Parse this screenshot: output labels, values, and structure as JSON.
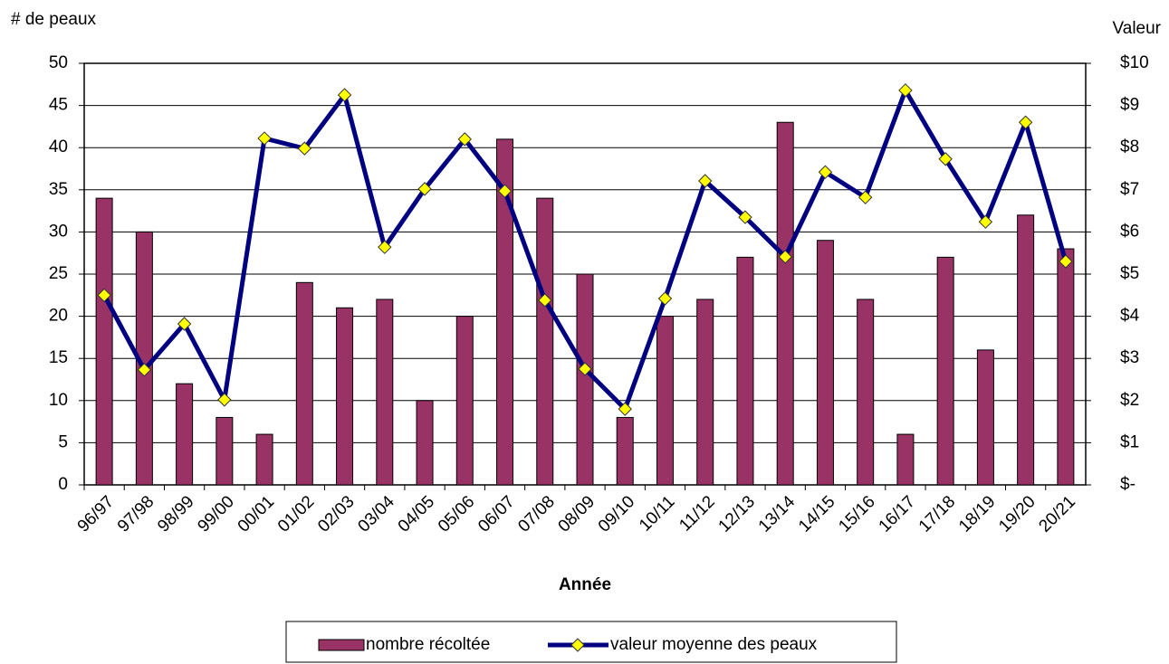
{
  "chart_data": {
    "type": "bar",
    "y_label": "# de peaux",
    "y2_label": "Valeur",
    "x_label": "Année",
    "categories": [
      "96/97",
      "97/98",
      "98/99",
      "99/00",
      "00/01",
      "01/02",
      "02/03",
      "03/04",
      "04/05",
      "05/06",
      "06/07",
      "07/08",
      "08/09",
      "09/10",
      "10/11",
      "11/12",
      "12/13",
      "13/14",
      "14/15",
      "15/16",
      "16/17",
      "17/18",
      "18/19",
      "19/20",
      "20/21"
    ],
    "series": [
      {
        "name": "nombre récoltée",
        "type": "bar",
        "color": "#993366",
        "values": [
          34,
          30,
          12,
          8,
          6,
          24,
          21,
          22,
          10,
          20,
          41,
          34,
          25,
          8,
          20,
          22,
          27,
          43,
          29,
          22,
          6,
          27,
          16,
          32,
          28
        ]
      },
      {
        "name": "valeur moyenne des peaux",
        "type": "line",
        "axis": "y2",
        "color": "#000080",
        "marker_color": "#ffff00",
        "values": [
          4.5,
          2.73,
          3.82,
          2.02,
          8.22,
          7.98,
          9.25,
          5.64,
          7.02,
          8.2,
          6.97,
          4.38,
          2.75,
          1.8,
          4.42,
          7.21,
          6.35,
          5.41,
          7.42,
          6.82,
          9.36,
          7.73,
          6.24,
          8.6,
          5.3
        ]
      }
    ],
    "ylim": [
      0,
      50
    ],
    "yticks": [
      0,
      5,
      10,
      15,
      20,
      25,
      30,
      35,
      40,
      45,
      50
    ],
    "y2lim": [
      0,
      10
    ],
    "y2ticks": [
      {
        "value": 0,
        "label": "$-"
      },
      {
        "value": 1,
        "label": "$1"
      },
      {
        "value": 2,
        "label": "$2"
      },
      {
        "value": 3,
        "label": "$3"
      },
      {
        "value": 4,
        "label": "$4"
      },
      {
        "value": 5,
        "label": "$5"
      },
      {
        "value": 6,
        "label": "$6"
      },
      {
        "value": 7,
        "label": "$7"
      },
      {
        "value": 8,
        "label": "$8"
      },
      {
        "value": 9,
        "label": "$9"
      },
      {
        "value": 10,
        "label": "$10"
      }
    ],
    "grid": true,
    "legend": "bottom"
  }
}
